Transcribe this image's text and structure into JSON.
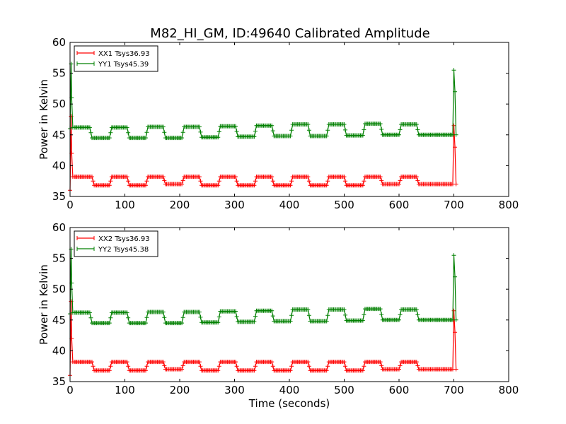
{
  "figure": {
    "title": "M82_HI_GM, ID:49640 Calibrated Amplitude"
  },
  "chart_data": [
    {
      "type": "line",
      "xlabel": "",
      "ylabel": "Power in Kelvin",
      "xlim": [
        0,
        800
      ],
      "ylim": [
        35,
        60
      ],
      "xticks": [
        "0",
        "100",
        "200",
        "300",
        "400",
        "500",
        "600",
        "700",
        "800"
      ],
      "yticks": [
        "35",
        "40",
        "45",
        "50",
        "55",
        "60"
      ],
      "grid": false,
      "legend_position": "top-left",
      "series": [
        {
          "name": "XX1 Tsys36.93",
          "color": "#ff0000",
          "marker": "plus",
          "x": [
            0,
            2,
            3,
            5,
            8,
            40,
            44,
            72,
            76,
            104,
            108,
            138,
            142,
            170,
            174,
            204,
            208,
            236,
            240,
            270,
            274,
            302,
            306,
            336,
            340,
            368,
            372,
            402,
            406,
            434,
            438,
            468,
            472,
            500,
            504,
            534,
            538,
            566,
            570,
            600,
            604,
            632,
            636,
            666,
            670,
            698,
            700,
            702,
            704
          ],
          "y": [
            36,
            48,
            42,
            38.2,
            38.2,
            38.2,
            36.8,
            36.8,
            38.2,
            38.2,
            36.8,
            36.8,
            38.2,
            38.2,
            37.0,
            37.0,
            38.2,
            38.2,
            36.8,
            36.8,
            38.2,
            38.2,
            36.8,
            36.8,
            38.2,
            38.2,
            36.8,
            36.8,
            38.2,
            38.2,
            36.8,
            36.8,
            38.2,
            38.2,
            36.8,
            36.8,
            38.2,
            38.2,
            37.0,
            37.0,
            38.2,
            38.2,
            37.0,
            37.0,
            37.0,
            37.0,
            46.5,
            43,
            37.0
          ]
        },
        {
          "name": "YY1 Tsys45.39",
          "color": "#008000",
          "marker": "plus",
          "x": [
            0,
            2,
            3,
            5,
            8,
            36,
            40,
            72,
            76,
            104,
            108,
            138,
            142,
            170,
            174,
            204,
            208,
            236,
            240,
            270,
            274,
            302,
            306,
            336,
            340,
            368,
            372,
            402,
            406,
            434,
            438,
            468,
            472,
            500,
            504,
            534,
            538,
            566,
            570,
            600,
            604,
            632,
            636,
            666,
            670,
            698,
            700,
            702,
            704
          ],
          "y": [
            46,
            56.5,
            51,
            46.2,
            46.2,
            46.2,
            44.5,
            44.5,
            46.2,
            46.2,
            44.5,
            44.5,
            46.3,
            46.3,
            44.5,
            44.5,
            46.3,
            46.3,
            44.6,
            44.6,
            46.4,
            46.4,
            44.7,
            44.7,
            46.5,
            46.5,
            44.8,
            44.8,
            46.7,
            46.7,
            44.8,
            44.8,
            46.7,
            46.7,
            44.9,
            44.9,
            46.8,
            46.8,
            45.0,
            45.0,
            46.7,
            46.7,
            45.0,
            45.0,
            45.0,
            45.0,
            55.5,
            52,
            45.0
          ]
        }
      ]
    },
    {
      "type": "line",
      "xlabel": "Time (seconds)",
      "ylabel": "Power in Kelvin",
      "xlim": [
        0,
        800
      ],
      "ylim": [
        35,
        60
      ],
      "xticks": [
        "0",
        "100",
        "200",
        "300",
        "400",
        "500",
        "600",
        "700",
        "800"
      ],
      "yticks": [
        "35",
        "40",
        "45",
        "50",
        "55",
        "60"
      ],
      "grid": false,
      "legend_position": "top-left",
      "series": [
        {
          "name": "XX2 Tsys36.93",
          "color": "#ff0000",
          "marker": "plus",
          "x": [
            0,
            2,
            3,
            5,
            8,
            40,
            44,
            72,
            76,
            104,
            108,
            138,
            142,
            170,
            174,
            204,
            208,
            236,
            240,
            270,
            274,
            302,
            306,
            336,
            340,
            368,
            372,
            402,
            406,
            434,
            438,
            468,
            472,
            500,
            504,
            534,
            538,
            566,
            570,
            600,
            604,
            632,
            636,
            666,
            670,
            698,
            700,
            702,
            704
          ],
          "y": [
            36,
            48,
            42,
            38.2,
            38.2,
            38.2,
            36.8,
            36.8,
            38.2,
            38.2,
            36.8,
            36.8,
            38.2,
            38.2,
            37.0,
            37.0,
            38.2,
            38.2,
            36.8,
            36.8,
            38.2,
            38.2,
            36.8,
            36.8,
            38.2,
            38.2,
            36.8,
            36.8,
            38.2,
            38.2,
            36.8,
            36.8,
            38.2,
            38.2,
            36.8,
            36.8,
            38.2,
            38.2,
            37.0,
            37.0,
            38.2,
            38.2,
            37.0,
            37.0,
            37.0,
            37.0,
            46.5,
            43,
            37.0
          ]
        },
        {
          "name": "YY2 Tsys45.38",
          "color": "#008000",
          "marker": "plus",
          "x": [
            0,
            2,
            3,
            5,
            8,
            36,
            40,
            72,
            76,
            104,
            108,
            138,
            142,
            170,
            174,
            204,
            208,
            236,
            240,
            270,
            274,
            302,
            306,
            336,
            340,
            368,
            372,
            402,
            406,
            434,
            438,
            468,
            472,
            500,
            504,
            534,
            538,
            566,
            570,
            600,
            604,
            632,
            636,
            666,
            670,
            698,
            700,
            702,
            704
          ],
          "y": [
            46,
            56.5,
            51,
            46.2,
            46.2,
            46.2,
            44.5,
            44.5,
            46.2,
            46.2,
            44.5,
            44.5,
            46.3,
            46.3,
            44.5,
            44.5,
            46.3,
            46.3,
            44.6,
            44.6,
            46.4,
            46.4,
            44.7,
            44.7,
            46.5,
            46.5,
            44.8,
            44.8,
            46.7,
            46.7,
            44.8,
            44.8,
            46.7,
            46.7,
            44.9,
            44.9,
            46.8,
            46.8,
            45.0,
            45.0,
            46.7,
            46.7,
            45.0,
            45.0,
            45.0,
            45.0,
            55.5,
            52,
            45.0
          ]
        }
      ]
    }
  ]
}
